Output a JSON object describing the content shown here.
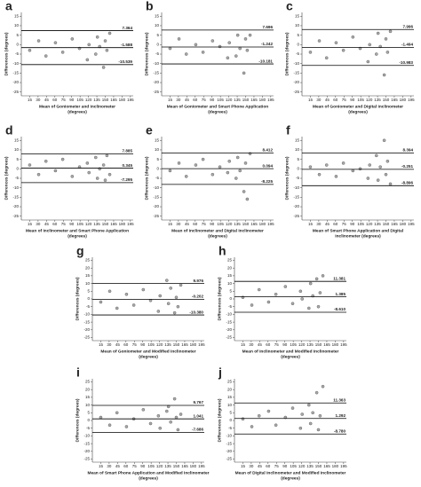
{
  "chart_data": [
    {
      "type": "scatter",
      "title": "a",
      "ylabel": "Differences (degrees)",
      "xlabel": [
        "Mean of Goniometer and Inclinometer",
        "(degrees)"
      ],
      "x": [
        15,
        31,
        44,
        61,
        74,
        91,
        104,
        118,
        121,
        133,
        136,
        140,
        147,
        150,
        153,
        158
      ],
      "values": [
        -3,
        2,
        -6,
        1,
        -4,
        3,
        -2,
        -8,
        0,
        -5,
        4,
        -1,
        -12,
        2,
        -3,
        6
      ],
      "hlines": [
        7.364,
        -1.588,
        -10.539
      ],
      "xlim": [
        0,
        200
      ],
      "ylim": [
        -27,
        17
      ],
      "xticks": [
        15,
        30,
        45,
        60,
        75,
        90,
        105,
        120,
        135,
        150,
        165,
        180,
        195
      ],
      "yticks": [
        15,
        10,
        5,
        0,
        -5,
        -10,
        -15,
        -20,
        -25
      ]
    },
    {
      "type": "scatter",
      "title": "b",
      "ylabel": "Differences (degrees)",
      "xlabel": [
        "Mean of Goniometer and Smart Phone Application",
        "(degrees)"
      ],
      "x": [
        15,
        31,
        44,
        61,
        74,
        91,
        104,
        118,
        121,
        133,
        136,
        140,
        147,
        150,
        153,
        158
      ],
      "values": [
        -2,
        3,
        -5,
        0,
        -4,
        2,
        -1,
        -7,
        1,
        -6,
        5,
        -2,
        -15,
        3,
        -3,
        5
      ],
      "hlines": [
        7.696,
        -1.242,
        -10.181
      ],
      "xlim": [
        0,
        200
      ],
      "ylim": [
        -27,
        17
      ],
      "xticks": [
        15,
        30,
        45,
        60,
        75,
        90,
        105,
        120,
        135,
        150,
        165,
        180,
        195
      ],
      "yticks": [
        15,
        10,
        5,
        0,
        -5,
        -10,
        -15,
        -20,
        -25
      ]
    },
    {
      "type": "scatter",
      "title": "c",
      "ylabel": "Differences (degrees)",
      "xlabel": [
        "Mean of Goniometer and Digital Inclinometer",
        "(degrees)"
      ],
      "x": [
        15,
        31,
        44,
        61,
        74,
        91,
        104,
        118,
        121,
        133,
        136,
        140,
        147,
        150,
        153,
        158
      ],
      "values": [
        -4,
        2,
        -7,
        1,
        -3,
        4,
        -2,
        -9,
        0,
        -5,
        6,
        -1,
        -16,
        3,
        -4,
        7
      ],
      "hlines": [
        7.996,
        -1.494,
        -10.983
      ],
      "xlim": [
        0,
        200
      ],
      "ylim": [
        -27,
        17
      ],
      "xticks": [
        15,
        30,
        45,
        60,
        75,
        90,
        105,
        120,
        135,
        150,
        165,
        180,
        195
      ],
      "yticks": [
        15,
        10,
        5,
        0,
        -5,
        -10,
        -15,
        -20,
        -25
      ]
    },
    {
      "type": "scatter",
      "title": "d",
      "ylabel": "Differences (degrees)",
      "xlabel": [
        "Mean of Inclinometer and Smart Phone Application",
        "(degrees)"
      ],
      "x": [
        15,
        31,
        44,
        61,
        74,
        91,
        104,
        118,
        121,
        133,
        136,
        140,
        147,
        150,
        153,
        158
      ],
      "values": [
        2,
        -3,
        4,
        -1,
        5,
        -4,
        1,
        3,
        -2,
        6,
        -5,
        0,
        2,
        -6,
        7,
        -3
      ],
      "hlines": [
        7.885,
        0.345,
        -7.295
      ],
      "xlim": [
        0,
        200
      ],
      "ylim": [
        -27,
        17
      ],
      "xticks": [
        15,
        30,
        45,
        60,
        75,
        90,
        105,
        120,
        135,
        150,
        165,
        180,
        195
      ],
      "yticks": [
        15,
        10,
        5,
        0,
        -5,
        -10,
        -15,
        -20,
        -25
      ]
    },
    {
      "type": "scatter",
      "title": "e",
      "ylabel": "Differences (degrees)",
      "xlabel": [
        "Mean of Inclinometer and Digital Inclinometer",
        "(degrees)"
      ],
      "x": [
        15,
        31,
        44,
        61,
        74,
        91,
        104,
        118,
        121,
        133,
        136,
        140,
        147,
        150,
        153,
        158
      ],
      "values": [
        -1,
        3,
        -4,
        2,
        5,
        -3,
        1,
        -2,
        4,
        -5,
        6,
        -1,
        -12,
        3,
        -16,
        8
      ],
      "hlines": [
        8.412,
        0.094,
        -8.225
      ],
      "xlim": [
        0,
        200
      ],
      "ylim": [
        -27,
        17
      ],
      "xticks": [
        15,
        30,
        45,
        60,
        75,
        90,
        105,
        120,
        135,
        150,
        165,
        180,
        195
      ],
      "yticks": [
        15,
        10,
        5,
        0,
        -5,
        -10,
        -15,
        -20,
        -25
      ]
    },
    {
      "type": "scatter",
      "title": "f",
      "ylabel": "Differences (degrees)",
      "xlabel": [
        "Mean of Smart Phone Application and Digital",
        "Inclinometer (degrees)"
      ],
      "x": [
        15,
        31,
        44,
        61,
        74,
        91,
        104,
        118,
        121,
        133,
        136,
        140,
        147,
        150,
        153,
        158
      ],
      "values": [
        1,
        -3,
        2,
        -4,
        3,
        -1,
        0,
        -5,
        2,
        7,
        -6,
        1,
        15,
        -3,
        4,
        -8
      ],
      "hlines": [
        8.394,
        -0.251,
        -8.896
      ],
      "xlim": [
        0,
        200
      ],
      "ylim": [
        -27,
        17
      ],
      "xticks": [
        15,
        30,
        45,
        60,
        75,
        90,
        105,
        120,
        135,
        150,
        165,
        180,
        195
      ],
      "yticks": [
        15,
        10,
        5,
        0,
        -5,
        -10,
        -15,
        -20,
        -25
      ]
    },
    {
      "type": "scatter",
      "title": "g",
      "ylabel": "Differences (degrees)",
      "xlabel": [
        "Mean of Goniometer and Modified Inclinometer",
        "(degrees)"
      ],
      "x": [
        15,
        31,
        44,
        61,
        74,
        91,
        104,
        118,
        121,
        133,
        136,
        140,
        147,
        150,
        153,
        158
      ],
      "values": [
        -2,
        5,
        -6,
        3,
        -4,
        6,
        -1,
        -8,
        2,
        12,
        -3,
        7,
        -9,
        1,
        -5,
        9
      ],
      "hlines": [
        9.976,
        -0.202,
        {
          "value": -10.38,
          "label": "-10.380"
        }
      ],
      "xlim": [
        0,
        200
      ],
      "ylim": [
        -27,
        27
      ],
      "xticks": [
        15,
        30,
        45,
        60,
        75,
        90,
        105,
        120,
        135,
        150,
        165,
        180,
        195
      ],
      "yticks": [
        25,
        20,
        15,
        10,
        5,
        0,
        -5,
        -10,
        -15,
        -20,
        -25
      ]
    },
    {
      "type": "scatter",
      "title": "h",
      "ylabel": "Differences (degrees)",
      "xlabel": [
        "Mean of Inclinometer and Modified Inclinometer",
        "(degrees)"
      ],
      "x": [
        15,
        31,
        44,
        61,
        74,
        91,
        104,
        118,
        121,
        133,
        136,
        140,
        147,
        150,
        153,
        158
      ],
      "values": [
        1,
        -4,
        6,
        -2,
        3,
        8,
        -3,
        5,
        0,
        -6,
        10,
        2,
        13,
        -5,
        4,
        15
      ],
      "hlines": [
        11.381,
        1.385,
        {
          "value": -8.61,
          "label": "-8.610"
        }
      ],
      "xlim": [
        0,
        200
      ],
      "ylim": [
        -27,
        27
      ],
      "xticks": [
        15,
        30,
        45,
        60,
        75,
        90,
        105,
        120,
        135,
        150,
        165,
        180,
        195
      ],
      "yticks": [
        25,
        20,
        15,
        10,
        5,
        0,
        -5,
        -10,
        -15,
        -20,
        -25
      ]
    },
    {
      "type": "scatter",
      "title": "i",
      "ylabel": "Differences (degrees)",
      "xlabel": [
        "Mean of Smart Phone Application and Modified Inclinometer",
        "(degrees)"
      ],
      "x": [
        15,
        31,
        44,
        61,
        74,
        91,
        104,
        118,
        121,
        133,
        136,
        140,
        147,
        150,
        153,
        158
      ],
      "values": [
        2,
        -3,
        5,
        -4,
        1,
        7,
        -2,
        3,
        -5,
        6,
        9,
        -1,
        14,
        2,
        -6,
        4
      ],
      "hlines": [
        9.767,
        1.041,
        -7.686
      ],
      "xlim": [
        0,
        200
      ],
      "ylim": [
        -27,
        27
      ],
      "xticks": [
        15,
        30,
        45,
        60,
        75,
        90,
        105,
        120,
        135,
        150,
        165,
        180,
        195
      ],
      "yticks": [
        25,
        20,
        15,
        10,
        5,
        0,
        -5,
        -10,
        -15,
        -20,
        -25
      ]
    },
    {
      "type": "scatter",
      "title": "j",
      "ylabel": "Differences (degrees)",
      "xlabel": [
        "Mean of Digital Inclinometer and Modified Inclinometer",
        "(degrees)"
      ],
      "x": [
        15,
        31,
        44,
        61,
        74,
        91,
        104,
        118,
        121,
        133,
        136,
        140,
        147,
        150,
        153,
        158
      ],
      "values": [
        1,
        -4,
        3,
        6,
        -3,
        2,
        8,
        -5,
        4,
        10,
        -2,
        5,
        18,
        -6,
        3,
        22
      ],
      "hlines": [
        11.363,
        1.292,
        {
          "value": -8.78,
          "label": "-8.780"
        }
      ],
      "xlim": [
        0,
        200
      ],
      "ylim": [
        -27,
        27
      ],
      "xticks": [
        15,
        30,
        45,
        60,
        75,
        90,
        105,
        120,
        135,
        150,
        165,
        180,
        195
      ],
      "yticks": [
        25,
        20,
        15,
        10,
        5,
        0,
        -5,
        -10,
        -15,
        -20,
        -25
      ]
    }
  ]
}
